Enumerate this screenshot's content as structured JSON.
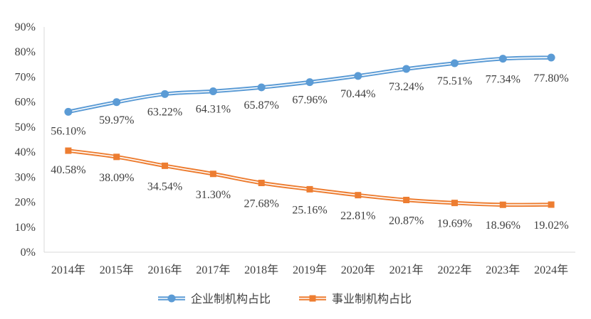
{
  "chart_data": {
    "type": "line",
    "categories": [
      "2014年",
      "2015年",
      "2016年",
      "2017年",
      "2018年",
      "2019年",
      "2020年",
      "2021年",
      "2022年",
      "2023年",
      "2024年"
    ],
    "series": [
      {
        "name": "企业制机构占比",
        "values": [
          56.1,
          59.97,
          63.22,
          64.31,
          65.87,
          67.96,
          70.44,
          73.24,
          75.51,
          77.34,
          77.8
        ],
        "labels": [
          "56.10%",
          "59.97%",
          "63.22%",
          "64.31%",
          "65.87%",
          "67.96%",
          "70.44%",
          "73.24%",
          "75.51%",
          "77.34%",
          "77.80%"
        ],
        "color": "#5B9BD5",
        "marker": "circle"
      },
      {
        "name": "事业制机构占比",
        "values": [
          40.58,
          38.09,
          34.54,
          31.3,
          27.68,
          25.16,
          22.81,
          20.87,
          19.69,
          18.96,
          19.02
        ],
        "labels": [
          "40.58%",
          "38.09%",
          "34.54%",
          "31.30%",
          "27.68%",
          "25.16%",
          "22.81%",
          "20.87%",
          "19.69%",
          "18.96%",
          "19.02%"
        ],
        "color": "#ED7D31",
        "marker": "square"
      }
    ],
    "y_ticks": [
      "0%",
      "10%",
      "20%",
      "30%",
      "40%",
      "50%",
      "60%",
      "70%",
      "80%",
      "90%"
    ],
    "ylim": [
      0,
      90
    ],
    "legend_position": "bottom",
    "grid": false
  }
}
